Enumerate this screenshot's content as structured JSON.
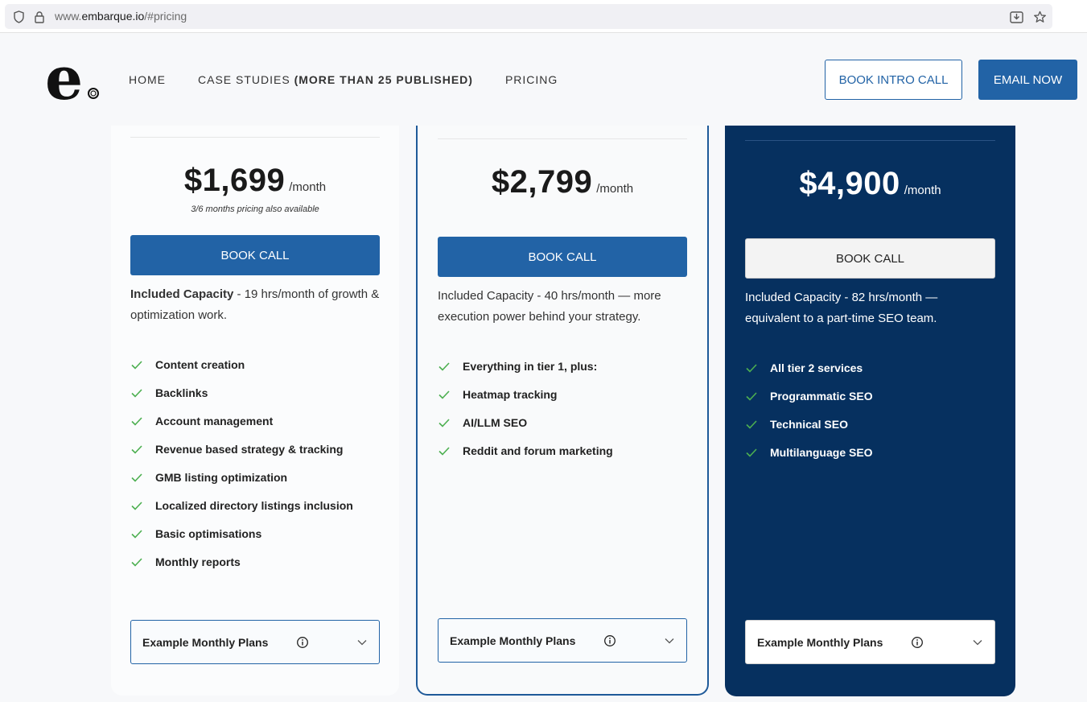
{
  "browser": {
    "url_prefix": "www.",
    "url_domain": "embarque.io",
    "url_suffix": "/#pricing"
  },
  "header": {
    "logo_letter": "e",
    "nav": [
      {
        "label": "HOME"
      },
      {
        "label": "CASE STUDIES ",
        "bold": "(MORE THAN 25 PUBLISHED)"
      },
      {
        "label": "PRICING"
      }
    ],
    "intro_button": "BOOK INTRO CALL",
    "email_button": "EMAIL NOW"
  },
  "plans": [
    {
      "price": "$1,699",
      "period": "/month",
      "note": "3/6 months pricing also available",
      "cta": "BOOK CALL",
      "capacity_bold": "Included Capacity",
      "capacity_rest": " - 19 hrs/month of growth & optimization work.",
      "features": [
        "Content creation",
        "Backlinks",
        "Account management",
        "Revenue based strategy & tracking",
        "GMB listing optimization",
        "Localized directory listings inclusion",
        "Basic optimisations",
        "Monthly reports"
      ],
      "examples_label": "Example Monthly Plans"
    },
    {
      "price": "$2,799",
      "period": "/month",
      "cta": "BOOK CALL",
      "capacity": "Included Capacity - 40 hrs/month — more execution power behind your strategy.",
      "features": [
        "Everything in tier 1, plus:",
        "Heatmap tracking",
        "AI/LLM SEO",
        "Reddit and forum marketing"
      ],
      "examples_label": "Example Monthly Plans"
    },
    {
      "price": "$4,900",
      "period": "/month",
      "cta": "BOOK CALL",
      "capacity": "Included Capacity - 82 hrs/month — equivalent to a part-time SEO team.",
      "features": [
        "All tier 2 services",
        "Programmatic SEO",
        "Technical SEO",
        "Multilanguage SEO"
      ],
      "examples_label": "Example Monthly Plans"
    }
  ],
  "colors": {
    "brand_blue": "#2263a6",
    "dark_navy": "#06305f",
    "check_green": "#4caf50"
  }
}
